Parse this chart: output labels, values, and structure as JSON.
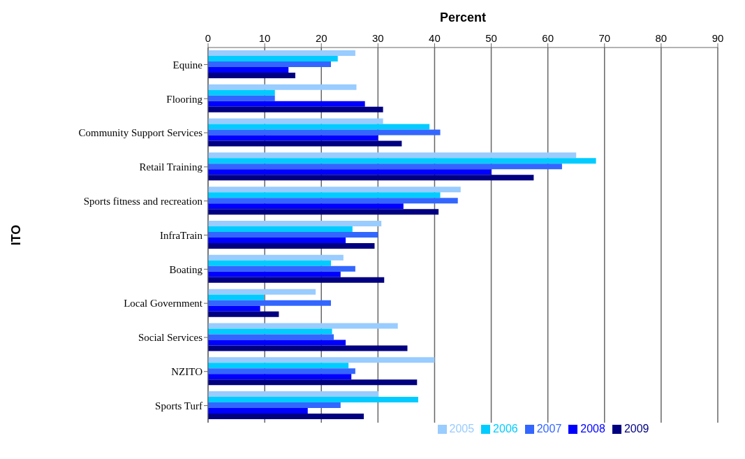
{
  "chart_data": {
    "type": "bar",
    "orientation": "horizontal",
    "xlabel": "Percent",
    "ylabel": "ITO",
    "categories": [
      "Equine",
      "Flooring",
      "Community Support Services",
      "Retail Training",
      "Sports fitness and recreation",
      "InfraTrain",
      "Boating",
      "Local Government",
      "Social Services",
      "NZITO",
      "Sports Turf"
    ],
    "series": [
      {
        "name": "2005",
        "color": "#99ccff",
        "values": [
          26.0,
          26.2,
          30.9,
          65.0,
          44.6,
          30.6,
          23.9,
          19.0,
          33.5,
          40.0,
          30.1
        ]
      },
      {
        "name": "2006",
        "color": "#00ccff",
        "values": [
          22.9,
          11.8,
          39.1,
          68.5,
          41.0,
          25.5,
          21.7,
          9.9,
          21.9,
          24.8,
          37.1
        ]
      },
      {
        "name": "2007",
        "color": "#3366ff",
        "values": [
          21.7,
          11.8,
          41.0,
          62.5,
          44.1,
          30.0,
          26.0,
          21.7,
          22.2,
          26.0,
          23.4
        ]
      },
      {
        "name": "2008",
        "color": "#0000ff",
        "values": [
          14.2,
          27.7,
          30.0,
          50.0,
          34.5,
          24.3,
          23.4,
          9.2,
          24.3,
          25.3,
          17.6
        ]
      },
      {
        "name": "2009",
        "color": "#000080",
        "values": [
          15.4,
          30.9,
          34.2,
          57.5,
          40.7,
          29.4,
          31.1,
          12.5,
          35.2,
          36.9,
          27.5
        ]
      }
    ],
    "xlim": [
      0,
      90
    ],
    "xticks": [
      0,
      10,
      20,
      30,
      40,
      50,
      60,
      70,
      80,
      90
    ],
    "grid": "x",
    "legend": "bottom"
  }
}
